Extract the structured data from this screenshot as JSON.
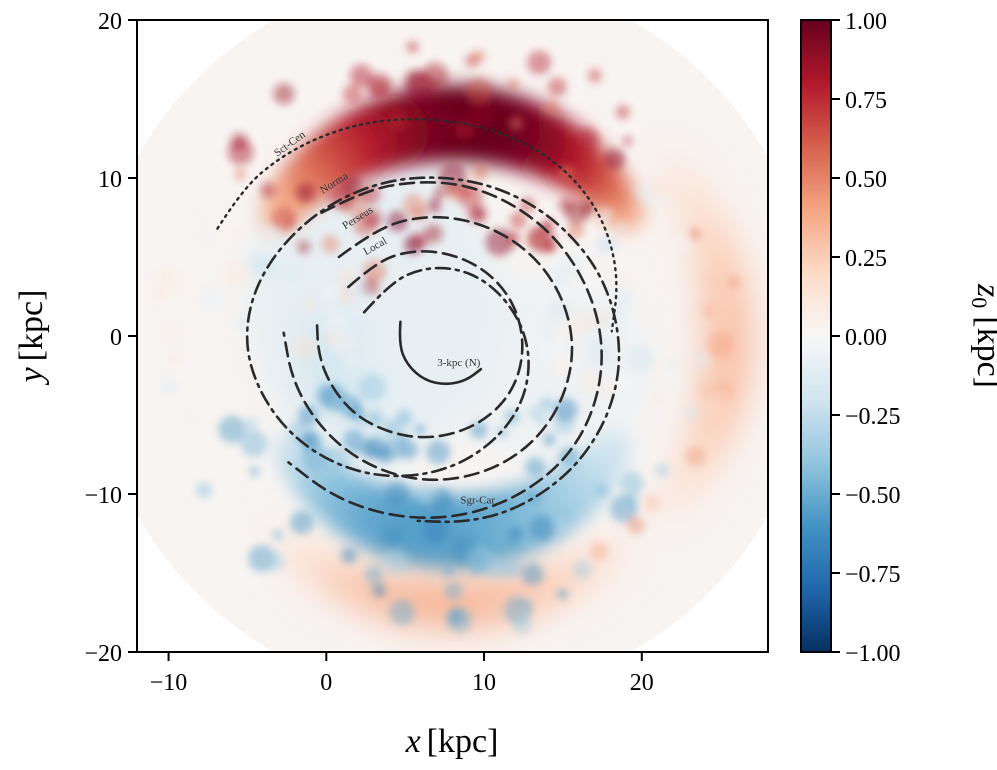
{
  "chart_data": {
    "type": "heatmap",
    "title": "",
    "xlabel_italic": "x",
    "xlabel_unit": "[kpc]",
    "ylabel_italic": "y",
    "ylabel_unit": "[kpc]",
    "xlim": [
      -12,
      28
    ],
    "ylim": [
      -20,
      20
    ],
    "x_ticks": [
      {
        "value": -10,
        "label": "−10"
      },
      {
        "value": 0,
        "label": "0"
      },
      {
        "value": 10,
        "label": "10"
      },
      {
        "value": 20,
        "label": "20"
      }
    ],
    "y_ticks": [
      {
        "value": -20,
        "label": "−20"
      },
      {
        "value": -10,
        "label": "−10"
      },
      {
        "value": 0,
        "label": "0"
      },
      {
        "value": 10,
        "label": "10"
      },
      {
        "value": 20,
        "label": "20"
      }
    ],
    "colorbar": {
      "label_base": "z",
      "label_sub": "0",
      "label_unit": "[kpc]",
      "range": [
        -1.0,
        1.0
      ],
      "colormap": "RdBu_r",
      "colors": [
        "#053061",
        "#2166ac",
        "#4393c3",
        "#92c5de",
        "#d1e5f0",
        "#f7f7f7",
        "#fddbc7",
        "#f4a582",
        "#d6604d",
        "#b2182b",
        "#67001f"
      ],
      "ticks": [
        {
          "value": 1.0,
          "label": "1.00"
        },
        {
          "value": 0.75,
          "label": "0.75"
        },
        {
          "value": 0.5,
          "label": "0.50"
        },
        {
          "value": 0.25,
          "label": "0.25"
        },
        {
          "value": 0.0,
          "label": "0.00"
        },
        {
          "value": -0.25,
          "label": "−0.25"
        },
        {
          "value": -0.5,
          "label": "−0.50"
        },
        {
          "value": -0.75,
          "label": "−0.75"
        },
        {
          "value": -1.0,
          "label": "−1.00"
        }
      ]
    },
    "map": {
      "center": [
        8.0,
        0.0
      ],
      "data_radius": 23.0,
      "features": [
        {
          "kind": "warp_band",
          "angle_deg": 90,
          "radius": 13.5,
          "amplitude": 1.0
        },
        {
          "kind": "warp_band",
          "angle_deg": 270,
          "radius": 12.5,
          "amplitude": -0.55
        },
        {
          "kind": "ripple",
          "angle_deg": 270,
          "radius": 17.0,
          "amplitude": 0.35
        },
        {
          "kind": "ripple",
          "angle_deg": 0,
          "radius": 17.5,
          "amplitude": 0.3
        },
        {
          "kind": "inner_dip",
          "angle_deg": 200,
          "radius": 8.0,
          "amplitude": -0.2
        }
      ]
    },
    "arms": [
      {
        "name": "3-kpc (N)",
        "style": "solid",
        "points": [
          [
            4.7,
            0.9
          ],
          [
            4.6,
            -0.5
          ],
          [
            5.1,
            -1.8
          ],
          [
            6.2,
            -2.8
          ],
          [
            7.6,
            -3.1
          ],
          [
            8.9,
            -2.8
          ],
          [
            9.8,
            -2.1
          ]
        ],
        "label": "3-kpc (N)",
        "label_at": [
          8.4,
          -1.9
        ],
        "label_rotate": 0
      },
      {
        "name": "Sgr-Car",
        "style": "dashdot",
        "points": [
          [
            2.4,
            1.5
          ],
          [
            4.1,
            3.4
          ],
          [
            6.1,
            4.3
          ],
          [
            8.2,
            4.3
          ],
          [
            10.1,
            3.5
          ],
          [
            11.7,
            1.9
          ],
          [
            12.7,
            -0.1
          ],
          [
            12.9,
            -2.4
          ],
          [
            12.2,
            -4.7
          ],
          [
            10.6,
            -6.7
          ],
          [
            8.3,
            -8.2
          ],
          [
            5.6,
            -8.9
          ],
          [
            2.7,
            -8.8
          ],
          [
            -0.1,
            -7.8
          ],
          [
            -2.5,
            -6.0
          ],
          [
            -4.2,
            -3.6
          ],
          [
            -5.1,
            -0.9
          ],
          [
            -4.9,
            1.9
          ],
          [
            -3.7,
            4.6
          ],
          [
            -1.6,
            7.0
          ],
          [
            1.0,
            8.8
          ],
          [
            4.1,
            9.9
          ],
          [
            7.4,
            10.1
          ],
          [
            10.6,
            9.5
          ],
          [
            13.5,
            8.1
          ],
          [
            15.9,
            6.0
          ],
          [
            17.6,
            3.5
          ],
          [
            18.5,
            0.6
          ],
          [
            18.6,
            -2.3
          ],
          [
            17.8,
            -5.2
          ],
          [
            16.2,
            -7.8
          ],
          [
            14.0,
            -9.8
          ],
          [
            11.4,
            -11.2
          ],
          [
            8.6,
            -11.8
          ],
          [
            5.8,
            -11.7
          ]
        ],
        "label": "Sgr-Car",
        "label_at": [
          9.6,
          -10.6
        ],
        "label_rotate": 0
      },
      {
        "name": "Local",
        "style": "dashed",
        "points": [
          [
            1.4,
            3.1
          ],
          [
            3.2,
            4.7
          ],
          [
            5.3,
            5.4
          ],
          [
            7.5,
            5.3
          ],
          [
            9.6,
            4.5
          ],
          [
            11.3,
            3.0
          ],
          [
            12.3,
            1.0
          ],
          [
            12.5,
            -1.2
          ],
          [
            11.9,
            -3.3
          ],
          [
            10.5,
            -5.0
          ],
          [
            8.5,
            -6.1
          ],
          [
            6.2,
            -6.5
          ],
          [
            3.9,
            -6.1
          ],
          [
            1.8,
            -5.0
          ],
          [
            0.3,
            -3.2
          ],
          [
            -0.5,
            -1.2
          ],
          [
            -0.6,
            1.0
          ]
        ],
        "label": "Local",
        "label_at": [
          3.2,
          5.5
        ],
        "label_rotate": -30
      },
      {
        "name": "Perseus",
        "style": "dashed",
        "points": [
          [
            0.8,
            5.0
          ],
          [
            3.2,
            6.8
          ],
          [
            6.0,
            7.6
          ],
          [
            8.9,
            7.4
          ],
          [
            11.6,
            6.3
          ],
          [
            13.8,
            4.4
          ],
          [
            15.2,
            1.9
          ],
          [
            15.7,
            -0.8
          ],
          [
            15.2,
            -3.5
          ],
          [
            13.9,
            -5.9
          ],
          [
            11.8,
            -7.8
          ],
          [
            9.2,
            -8.9
          ],
          [
            6.4,
            -9.2
          ],
          [
            3.6,
            -8.6
          ],
          [
            1.1,
            -7.2
          ],
          [
            -0.9,
            -5.1
          ],
          [
            -2.2,
            -2.6
          ],
          [
            -2.7,
            0.2
          ]
        ],
        "label": "Perseus",
        "label_at": [
          2.1,
          7.3
        ],
        "label_rotate": -32
      },
      {
        "name": "Norma",
        "style": "dashed",
        "points": [
          [
            -0.3,
            7.8
          ],
          [
            2.4,
            9.2
          ],
          [
            5.6,
            9.8
          ],
          [
            8.8,
            9.6
          ],
          [
            11.8,
            8.4
          ],
          [
            14.4,
            6.4
          ],
          [
            16.3,
            3.7
          ],
          [
            17.4,
            0.6
          ],
          [
            17.5,
            -2.5
          ],
          [
            16.6,
            -5.6
          ],
          [
            14.9,
            -8.1
          ],
          [
            12.4,
            -10.0
          ],
          [
            9.5,
            -11.2
          ],
          [
            6.4,
            -11.6
          ],
          [
            3.2,
            -11.2
          ],
          [
            0.2,
            -10.0
          ],
          [
            -2.4,
            -8.0
          ]
        ],
        "label": "Norma",
        "label_at": [
          0.6,
          9.5
        ],
        "label_rotate": -32
      },
      {
        "name": "Sct-Cen",
        "style": "dotted",
        "points": [
          [
            -6.9,
            6.8
          ],
          [
            -5.3,
            9.3
          ],
          [
            -3.1,
            11.2
          ],
          [
            -0.5,
            12.6
          ],
          [
            2.4,
            13.5
          ],
          [
            5.6,
            13.8
          ],
          [
            8.8,
            13.5
          ],
          [
            11.9,
            12.6
          ],
          [
            14.6,
            11.0
          ],
          [
            16.7,
            8.8
          ],
          [
            18.0,
            6.2
          ],
          [
            18.5,
            3.3
          ],
          [
            18.1,
            0.3
          ]
        ],
        "label": "Sct-Cen",
        "label_at": [
          -2.2,
          12.0
        ],
        "label_rotate": -36
      }
    ]
  }
}
